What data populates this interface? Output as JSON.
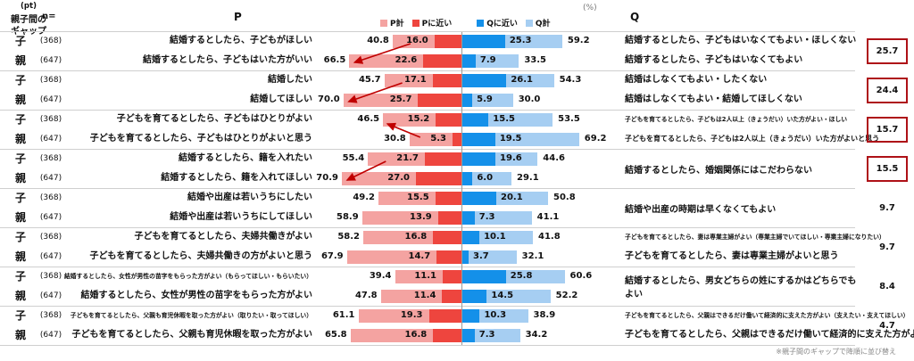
{
  "header": {
    "n_label": "n=",
    "p_label": "P",
    "q_label": "Q",
    "percent_unit": "(%)",
    "pt_unit": "(pt)",
    "gap_title_line1": "親子間の",
    "gap_title_line2": "ギャップ"
  },
  "legend": [
    {
      "label": "P計",
      "color": "#F4A3A1"
    },
    {
      "label": "Pに近い",
      "color": "#EE453E"
    },
    {
      "label": "Qに近い",
      "color": "#1490E9"
    },
    {
      "label": "Q計",
      "color": "#A6CEF2"
    }
  ],
  "footnote": "※親子間のギャップで降順に並び替え",
  "chart_data": {
    "type": "bar",
    "subtype": "diverging-stacked-paired",
    "unit": "%",
    "gap_unit": "pt",
    "series_legend": [
      "P計",
      "Pに近い",
      "Qに近い",
      "Q計"
    ],
    "colors": {
      "p_total": "#F4A3A1",
      "p_near": "#EE453E",
      "q_near": "#1490E9",
      "q_total": "#A6CEF2",
      "gap_box_border": "#AE1117",
      "arrow": "#C00000"
    },
    "pairs": [
      {
        "gap": "25.7",
        "gap_boxed": true,
        "rows": [
          {
            "member": "子",
            "n": "(368)",
            "p_text": "結婚するとしたら、子どもがほしい",
            "p_total": 40.8,
            "p_near": 16.0,
            "q_near": 25.3,
            "q_total": 59.2,
            "q_text": "結婚するとしたら、子どもはいなくてもよい・ほしくない"
          },
          {
            "member": "親",
            "n": "(647)",
            "p_text": "結婚するとしたら、子どもはいた方がいい",
            "p_total": 66.5,
            "p_near": 22.6,
            "q_near": 7.9,
            "q_total": 33.5,
            "q_text": "結婚するとしたら、子どもはいなくてもよい"
          }
        ]
      },
      {
        "gap": "24.4",
        "gap_boxed": true,
        "rows": [
          {
            "member": "子",
            "n": "(368)",
            "p_text": "結婚したい",
            "p_total": 45.7,
            "p_near": 17.1,
            "q_near": 26.1,
            "q_total": 54.3,
            "q_text": "結婚はしなくてもよい・したくない"
          },
          {
            "member": "親",
            "n": "(647)",
            "p_text": "結婚してほしい",
            "p_total": 70.0,
            "p_near": 25.7,
            "q_near": 5.9,
            "q_total": 30.0,
            "q_text": "結婚はしなくてもよい・結婚してほしくない"
          }
        ]
      },
      {
        "gap": "15.7",
        "gap_boxed": true,
        "rows": [
          {
            "member": "子",
            "n": "(368)",
            "p_text": "子どもを育てるとしたら、子どもはひとりがよい",
            "p_total": 46.5,
            "p_near": 15.2,
            "q_near": 15.5,
            "q_total": 53.5,
            "q_text": "子どもを育てるとしたら、子どもは2人以上（きょうだい）いた方がよい・ほしい",
            "q_size": "small"
          },
          {
            "member": "親",
            "n": "(647)",
            "p_text": "子どもを育てるとしたら、子どもはひとりがよいと思う",
            "p_total": 30.8,
            "p_near": 5.3,
            "q_near": 19.5,
            "q_total": 69.2,
            "q_text": "子どもを育てるとしたら、子どもは2人以上（きょうだい）いた方がよいと思う",
            "q_size": "mid"
          }
        ]
      },
      {
        "gap": "15.5",
        "gap_boxed": true,
        "q_shared": "結婚するとしたら、婚姻関係にはこだわらない",
        "rows": [
          {
            "member": "子",
            "n": "(368)",
            "p_text": "結婚するとしたら、籍を入れたい",
            "p_total": 55.4,
            "p_near": 21.7,
            "q_near": 19.6,
            "q_total": 44.6
          },
          {
            "member": "親",
            "n": "(647)",
            "p_text": "結婚するとしたら、籍を入れてほしい",
            "p_total": 70.9,
            "p_near": 27.0,
            "q_near": 6.0,
            "q_total": 29.1
          }
        ]
      },
      {
        "gap": "9.7",
        "gap_boxed": false,
        "q_shared": "結婚や出産の時期は早くなくてもよい",
        "rows": [
          {
            "member": "子",
            "n": "(368)",
            "p_text": "結婚や出産は若いうちにしたい",
            "p_total": 49.2,
            "p_near": 15.5,
            "q_near": 20.1,
            "q_total": 50.8
          },
          {
            "member": "親",
            "n": "(647)",
            "p_text": "結婚や出産は若いうちにしてほしい",
            "p_total": 58.9,
            "p_near": 13.9,
            "q_near": 7.3,
            "q_total": 41.1
          }
        ]
      },
      {
        "gap": "9.7",
        "gap_boxed": false,
        "rows": [
          {
            "member": "子",
            "n": "(368)",
            "p_text": "子どもを育てるとしたら、夫婦共働きがよい",
            "p_total": 58.2,
            "p_near": 16.8,
            "q_near": 10.1,
            "q_total": 41.8,
            "q_text": "子どもを育てるとしたら、妻は専業主婦がよい（専業主婦でいてほしい・専業主婦になりたい）",
            "q_size": "small"
          },
          {
            "member": "親",
            "n": "(647)",
            "p_text": "子どもを育てるとしたら、夫婦共働きの方がよいと思う",
            "p_total": 67.9,
            "p_near": 14.7,
            "q_near": 3.7,
            "q_total": 32.1,
            "q_text": "子どもを育てるとしたら、妻は専業主婦がよいと思う"
          }
        ]
      },
      {
        "gap": "8.4",
        "gap_boxed": false,
        "q_shared": "結婚するとしたら、男女どちらの姓にするかはどちらでもよい",
        "rows": [
          {
            "member": "子",
            "n": "(368)",
            "p_text": "結婚するとしたら、女性が男性の苗字をもらった方がよい（もらってほしい・もらいたい）",
            "p_size": "small",
            "p_total": 39.4,
            "p_near": 11.1,
            "q_near": 25.8,
            "q_total": 60.6
          },
          {
            "member": "親",
            "n": "(647)",
            "p_text": "結婚するとしたら、女性が男性の苗字をもらった方がよい",
            "p_total": 47.8,
            "p_near": 11.4,
            "q_near": 14.5,
            "q_total": 52.2
          }
        ]
      },
      {
        "gap": "4.7",
        "gap_boxed": false,
        "rows": [
          {
            "member": "子",
            "n": "(368)",
            "p_text": "子どもを育てるとしたら、父親も育児休暇を取った方がよい（取りたい・取ってほしい）",
            "p_size": "small",
            "p_total": 61.1,
            "p_near": 19.3,
            "q_near": 10.3,
            "q_total": 38.9,
            "q_text": "子どもを育てるとしたら、父親はできるだけ働いて経済的に支えた方がよい（支えたい・支えてほしい）",
            "q_size": "small"
          },
          {
            "member": "親",
            "n": "(647)",
            "p_text": "子どもを育てるとしたら、父親も育児休暇を取った方がよい",
            "p_total": 65.8,
            "p_near": 16.8,
            "q_near": 7.3,
            "q_total": 34.2,
            "q_text": "子どもを育てるとしたら、父親はできるだけ働いて経済的に支えた方がよい"
          }
        ]
      }
    ],
    "arrows": [
      {
        "pair": 0,
        "from_row": 0,
        "to_row": 1
      },
      {
        "pair": 1,
        "from_row": 0,
        "to_row": 1
      },
      {
        "pair": 2,
        "from_row": 1,
        "to_row": 0
      },
      {
        "pair": 3,
        "from_row": 0,
        "to_row": 1
      }
    ]
  }
}
